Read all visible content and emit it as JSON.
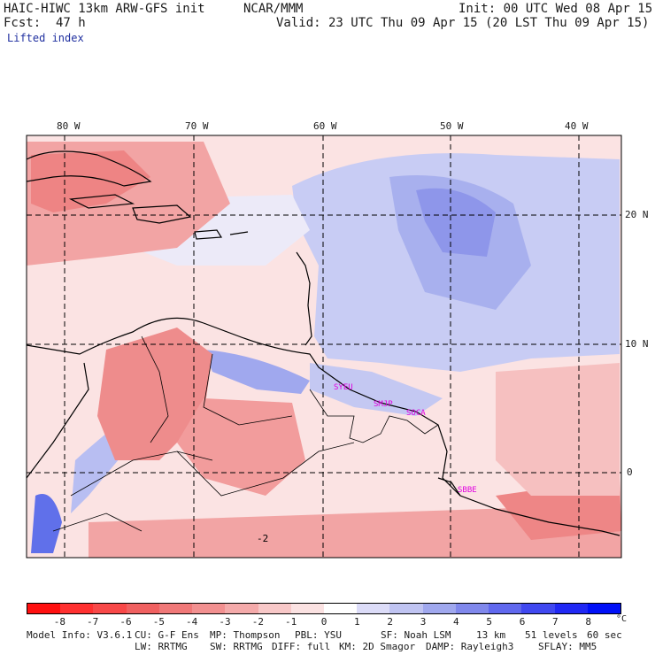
{
  "header": {
    "model": "HAIC-HIWC 13km ARW-GFS init",
    "org": "NCAR/MMM",
    "init": "Init: 00 UTC Wed 08 Apr 15",
    "fcst_label": "Fcst:",
    "fcst_hours": "47 h",
    "valid": "Valid: 23 UTC Thu 09 Apr 15 (20 LST Thu 09 Apr 15)",
    "field": "Lifted index"
  },
  "map": {
    "lon_labels": [
      "80 W",
      "70 W",
      "60 W",
      "50 W",
      "40 W"
    ],
    "lat_labels": [
      "20 N",
      "10 N",
      "0"
    ],
    "stations": [
      "SYEU",
      "SMJP",
      "SOCA",
      "SBBE"
    ],
    "contour_label": "-2",
    "station_color": "#e000e0"
  },
  "colorbar": {
    "labels": [
      "-8",
      "-7",
      "-6",
      "-5",
      "-4",
      "-3",
      "-2",
      "-1",
      "0",
      "1",
      "2",
      "3",
      "4",
      "5",
      "6",
      "7",
      "8"
    ],
    "unit": "°C",
    "colors": [
      "#ff1010",
      "#ff3030",
      "#f84848",
      "#f06060",
      "#f07878",
      "#f29090",
      "#f4aaaa",
      "#f8c8c8",
      "#fbe2e2",
      "#ffffff",
      "#dcdcf8",
      "#c0c4f2",
      "#a0a8ee",
      "#8088ec",
      "#6068ee",
      "#4048f0",
      "#2028f4",
      "#0010f8"
    ]
  },
  "footer": {
    "line1_a": "Model Info: V3.6.1",
    "line1_b": "CU: G-F Ens",
    "line1_c": "MP: Thompson",
    "line1_d": "PBL: YSU",
    "line1_e": "SF: Noah LSM",
    "line1_f": "13 km",
    "line1_g": "51 levels",
    "line1_h": "60 sec",
    "line2_a": "LW: RRTMG",
    "line2_b": "SW: RRTMG",
    "line2_c": "DIFF: full",
    "line2_d": "KM: 2D Smagor",
    "line2_e": "DAMP: Rayleigh3",
    "line2_f": "SFLAY: MM5"
  }
}
